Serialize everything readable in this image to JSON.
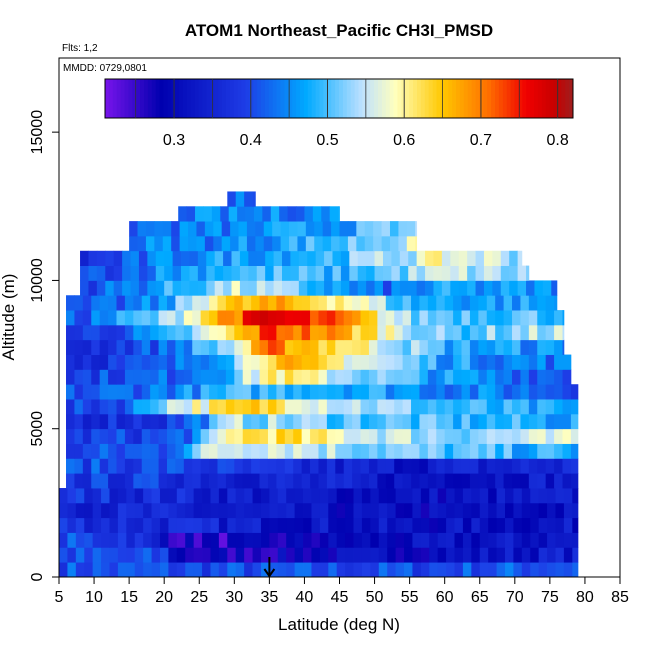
{
  "chart_data": {
    "type": "heatmap",
    "title": "ATOM1 Northeast_Pacific CH3I_PMSD",
    "subtitle": "Flts: 1,2",
    "annotation": "MMDD: 0729,0801",
    "xlabel": "Latitude (deg N)",
    "ylabel": "Altitude (m)",
    "xlim": [
      5,
      85
    ],
    "ylim": [
      0,
      17500
    ],
    "xticks": [
      "5",
      "10",
      "15",
      "20",
      "25",
      "30",
      "35",
      "40",
      "45",
      "50",
      "55",
      "60",
      "65",
      "70",
      "75",
      "80",
      "85"
    ],
    "yticks": [
      "0",
      "5000",
      "10000",
      "15000"
    ],
    "colorbar": {
      "ticks": [
        "0.3",
        "0.4",
        "0.5",
        "0.6",
        "0.7",
        "0.8"
      ],
      "tick_values": [
        0.3,
        0.4,
        0.5,
        0.6,
        0.7,
        0.8
      ],
      "range": [
        0.21,
        0.82
      ]
    },
    "marker": {
      "x": 35,
      "symbol": "arrow-down"
    },
    "cell": {
      "dlat": 1.2,
      "dalt": 500
    },
    "layers": [
      {
        "alt": 250,
        "lat_range": [
          5,
          79
        ],
        "profile": [
          [
            5,
            0.41
          ],
          [
            20,
            0.4
          ],
          [
            35,
            0.4
          ],
          [
            55,
            0.4
          ],
          [
            79,
            0.42
          ]
        ]
      },
      {
        "alt": 750,
        "lat_range": [
          5,
          79
        ],
        "profile": [
          [
            5,
            0.4
          ],
          [
            20,
            0.39
          ],
          [
            22,
            0.28
          ],
          [
            26,
            0.27
          ],
          [
            35,
            0.28
          ],
          [
            45,
            0.3
          ],
          [
            60,
            0.31
          ],
          [
            79,
            0.34
          ]
        ]
      },
      {
        "alt": 1250,
        "lat_range": [
          5,
          79
        ],
        "profile": [
          [
            5,
            0.4
          ],
          [
            15,
            0.39
          ],
          [
            22,
            0.27
          ],
          [
            28,
            0.26
          ],
          [
            45,
            0.29
          ],
          [
            60,
            0.31
          ],
          [
            79,
            0.33
          ]
        ]
      },
      {
        "alt": 1750,
        "lat_range": [
          5,
          79
        ],
        "profile": [
          [
            5,
            0.38
          ],
          [
            20,
            0.36
          ],
          [
            35,
            0.33
          ],
          [
            55,
            0.31
          ],
          [
            79,
            0.32
          ]
        ]
      },
      {
        "alt": 2250,
        "lat_range": [
          5,
          79
        ],
        "profile": [
          [
            5,
            0.37
          ],
          [
            20,
            0.34
          ],
          [
            40,
            0.31
          ],
          [
            60,
            0.3
          ],
          [
            79,
            0.31
          ]
        ]
      },
      {
        "alt": 2750,
        "lat_range": [
          5,
          79
        ],
        "profile": [
          [
            5,
            0.38
          ],
          [
            20,
            0.36
          ],
          [
            40,
            0.32
          ],
          [
            60,
            0.31
          ],
          [
            79,
            0.33
          ]
        ]
      },
      {
        "alt": 3250,
        "lat_range": [
          6,
          79
        ],
        "profile": [
          [
            6,
            0.38
          ],
          [
            20,
            0.38
          ],
          [
            35,
            0.35
          ],
          [
            55,
            0.32
          ],
          [
            79,
            0.34
          ]
        ]
      },
      {
        "alt": 3750,
        "lat_range": [
          6,
          79
        ],
        "profile": [
          [
            6,
            0.4
          ],
          [
            20,
            0.4
          ],
          [
            35,
            0.36
          ],
          [
            55,
            0.33
          ],
          [
            79,
            0.36
          ]
        ]
      },
      {
        "alt": 4250,
        "lat_range": [
          6,
          79
        ],
        "profile": [
          [
            6,
            0.39
          ],
          [
            20,
            0.42
          ],
          [
            27,
            0.56
          ],
          [
            35,
            0.58
          ],
          [
            45,
            0.54
          ],
          [
            60,
            0.5
          ],
          [
            79,
            0.47
          ]
        ]
      },
      {
        "alt": 4750,
        "lat_range": [
          6,
          79
        ],
        "profile": [
          [
            6,
            0.38
          ],
          [
            20,
            0.4
          ],
          [
            25,
            0.45
          ],
          [
            30,
            0.62
          ],
          [
            35,
            0.63
          ],
          [
            45,
            0.58
          ],
          [
            60,
            0.53
          ],
          [
            79,
            0.55
          ]
        ]
      },
      {
        "alt": 5250,
        "lat_range": [
          6,
          79
        ],
        "profile": [
          [
            6,
            0.37
          ],
          [
            20,
            0.38
          ],
          [
            25,
            0.44
          ],
          [
            30,
            0.54
          ],
          [
            40,
            0.52
          ],
          [
            60,
            0.49
          ],
          [
            79,
            0.47
          ]
        ]
      },
      {
        "alt": 5750,
        "lat_range": [
          6,
          79
        ],
        "profile": [
          [
            6,
            0.38
          ],
          [
            15,
            0.42
          ],
          [
            20,
            0.55
          ],
          [
            30,
            0.62
          ],
          [
            35,
            0.64
          ],
          [
            45,
            0.56
          ],
          [
            60,
            0.49
          ],
          [
            79,
            0.45
          ]
        ]
      },
      {
        "alt": 6250,
        "lat_range": [
          6,
          79
        ],
        "profile": [
          [
            6,
            0.4
          ],
          [
            15,
            0.43
          ],
          [
            25,
            0.46
          ],
          [
            30,
            0.48
          ],
          [
            40,
            0.5
          ],
          [
            60,
            0.45
          ],
          [
            79,
            0.42
          ]
        ]
      },
      {
        "alt": 6750,
        "lat_range": [
          6,
          78
        ],
        "profile": [
          [
            6,
            0.39
          ],
          [
            20,
            0.42
          ],
          [
            30,
            0.5
          ],
          [
            35,
            0.62
          ],
          [
            45,
            0.55
          ],
          [
            60,
            0.46
          ],
          [
            78,
            0.42
          ]
        ]
      },
      {
        "alt": 7250,
        "lat_range": [
          6,
          78
        ],
        "profile": [
          [
            6,
            0.37
          ],
          [
            20,
            0.4
          ],
          [
            30,
            0.52
          ],
          [
            35,
            0.66
          ],
          [
            45,
            0.6
          ],
          [
            60,
            0.47
          ],
          [
            78,
            0.43
          ]
        ]
      },
      {
        "alt": 7750,
        "lat_range": [
          6,
          77
        ],
        "profile": [
          [
            6,
            0.36
          ],
          [
            20,
            0.42
          ],
          [
            30,
            0.55
          ],
          [
            35,
            0.7
          ],
          [
            45,
            0.63
          ],
          [
            60,
            0.48
          ],
          [
            77,
            0.45
          ]
        ]
      },
      {
        "alt": 8250,
        "lat_range": [
          6,
          77
        ],
        "profile": [
          [
            6,
            0.37
          ],
          [
            20,
            0.45
          ],
          [
            30,
            0.62
          ],
          [
            35,
            0.74
          ],
          [
            45,
            0.67
          ],
          [
            60,
            0.5
          ],
          [
            77,
            0.55
          ]
        ]
      },
      {
        "alt": 8750,
        "lat_range": [
          6,
          77
        ],
        "profile": [
          [
            6,
            0.4
          ],
          [
            20,
            0.52
          ],
          [
            27,
            0.66
          ],
          [
            35,
            0.78
          ],
          [
            45,
            0.7
          ],
          [
            55,
            0.52
          ],
          [
            77,
            0.5
          ]
        ]
      },
      {
        "alt": 9250,
        "lat_range": [
          6,
          76
        ],
        "profile": [
          [
            6,
            0.38
          ],
          [
            20,
            0.45
          ],
          [
            27,
            0.62
          ],
          [
            35,
            0.66
          ],
          [
            45,
            0.62
          ],
          [
            55,
            0.48
          ],
          [
            76,
            0.46
          ]
        ]
      },
      {
        "alt": 9750,
        "lat_range": [
          8,
          76
        ],
        "profile": [
          [
            8,
            0.4
          ],
          [
            20,
            0.47
          ],
          [
            30,
            0.55
          ],
          [
            40,
            0.5
          ],
          [
            50,
            0.42
          ],
          [
            60,
            0.46
          ],
          [
            76,
            0.45
          ]
        ]
      },
      {
        "alt": 10250,
        "lat_range": [
          8,
          72
        ],
        "profile": [
          [
            8,
            0.39
          ],
          [
            20,
            0.46
          ],
          [
            30,
            0.5
          ],
          [
            45,
            0.48
          ],
          [
            60,
            0.55
          ],
          [
            72,
            0.52
          ]
        ]
      },
      {
        "alt": 10750,
        "lat_range": [
          8,
          71
        ],
        "profile": [
          [
            8,
            0.36
          ],
          [
            20,
            0.44
          ],
          [
            30,
            0.47
          ],
          [
            45,
            0.5
          ],
          [
            60,
            0.58
          ],
          [
            71,
            0.54
          ]
        ]
      },
      {
        "alt": 11250,
        "lat_range": [
          15,
          56
        ],
        "profile": [
          [
            15,
            0.44
          ],
          [
            30,
            0.45
          ],
          [
            45,
            0.5
          ],
          [
            56,
            0.56
          ]
        ]
      },
      {
        "alt": 11750,
        "lat_range": [
          15,
          56
        ],
        "profile": [
          [
            15,
            0.43
          ],
          [
            30,
            0.44
          ],
          [
            45,
            0.47
          ],
          [
            56,
            0.52
          ]
        ]
      },
      {
        "alt": 12250,
        "lat_range": [
          22,
          45
        ],
        "profile": [
          [
            22,
            0.44
          ],
          [
            35,
            0.44
          ],
          [
            45,
            0.46
          ]
        ]
      },
      {
        "alt": 12750,
        "lat_range": [
          29,
          33
        ],
        "profile": [
          [
            29,
            0.44
          ],
          [
            33,
            0.43
          ]
        ]
      }
    ]
  }
}
